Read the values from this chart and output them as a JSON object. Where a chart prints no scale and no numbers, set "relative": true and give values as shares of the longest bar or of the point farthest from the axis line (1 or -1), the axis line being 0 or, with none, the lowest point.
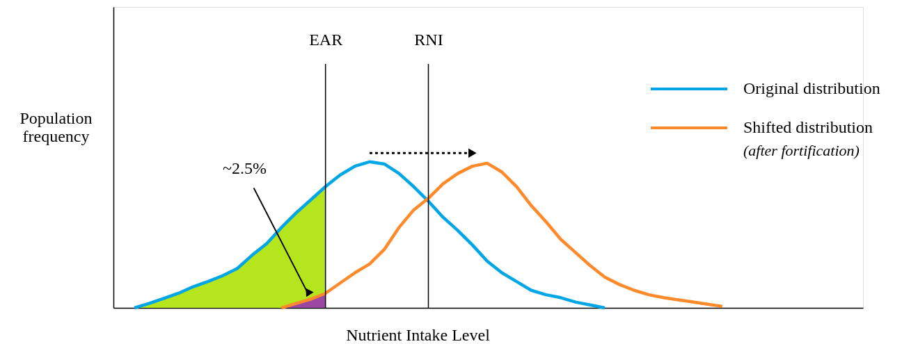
{
  "chart_data": {
    "type": "line",
    "relative": true,
    "xlabel": "Nutrient Intake Level",
    "ylabel": "Population frequency",
    "categories": [
      null,
      null,
      null,
      null,
      null,
      null,
      null,
      null,
      null,
      null,
      null,
      null,
      null,
      "EAR",
      null,
      null,
      null,
      null,
      null,
      null,
      "RNI",
      null,
      null,
      null,
      null,
      null,
      null,
      null,
      null,
      null,
      null,
      null,
      null,
      null,
      null,
      null,
      null,
      null,
      null,
      null,
      null,
      null,
      null,
      null,
      null,
      null,
      null,
      null,
      null,
      null
    ],
    "tick_labels": "x",
    "grid": false,
    "legend": "top right",
    "marker": "none",
    "line_style": "solid",
    "series": [
      {
        "name": "Original distribution",
        "color": "#00a6e6",
        "values": [
          0,
          0.03,
          0.065,
          0.1,
          0.145,
          0.18,
          0.22,
          0.27,
          0.36,
          0.44,
          0.55,
          0.65,
          0.74,
          0.83,
          0.91,
          0.97,
          1,
          0.985,
          0.92,
          0.83,
          0.73,
          0.62,
          0.53,
          0.43,
          0.32,
          0.24,
          0.18,
          0.12,
          0.09,
          0.07,
          0.04,
          0.02,
          0,
          null,
          null,
          null,
          null,
          null,
          null,
          null,
          null,
          null,
          null,
          null,
          null,
          null,
          null,
          null,
          null,
          null
        ]
      },
      {
        "name": "Shifted distribution (after fortification)",
        "color": "#ff8a2b",
        "values": [
          null,
          null,
          null,
          null,
          null,
          null,
          null,
          null,
          null,
          null,
          0,
          0.03,
          0.06,
          0.1,
          0.17,
          0.24,
          0.3,
          0.4,
          0.55,
          0.67,
          0.75,
          0.85,
          0.92,
          0.97,
          0.99,
          0.93,
          0.83,
          0.7,
          0.59,
          0.47,
          0.38,
          0.29,
          0.21,
          0.16,
          0.12,
          0.09,
          0.07,
          0.055,
          0.04,
          0.025,
          0.01,
          null,
          null,
          null,
          null,
          null,
          null,
          null,
          null,
          null
        ]
      },
      {
        "type": "area",
        "color": "#b5e61d",
        "values": [
          0,
          0.03,
          0.065,
          0.1,
          0.145,
          0.18,
          0.22,
          0.27,
          0.36,
          0.44,
          0.55,
          0.65,
          0.74,
          0.83,
          null,
          null,
          null,
          null,
          null,
          null,
          null,
          null,
          null,
          null,
          null,
          null,
          null,
          null,
          null,
          null,
          null,
          null,
          null,
          null,
          null,
          null,
          null,
          null,
          null,
          null,
          null,
          null,
          null,
          null,
          null,
          null,
          null,
          null,
          null,
          null
        ]
      },
      {
        "type": "area",
        "color": "#9b47a3",
        "values": [
          null,
          null,
          null,
          null,
          null,
          null,
          null,
          null,
          null,
          null,
          0,
          0.03,
          0.06,
          0.1,
          null,
          null,
          null,
          null,
          null,
          null,
          null,
          null,
          null,
          null,
          null,
          null,
          null,
          null,
          null,
          null,
          null,
          null,
          null,
          null,
          null,
          null,
          null,
          null,
          null,
          null,
          null,
          null,
          null,
          null,
          null,
          null,
          null,
          null,
          null,
          null
        ]
      }
    ],
    "ref_lines": [
      {
        "axis": "x",
        "value": "EAR",
        "color": "#000000"
      },
      {
        "axis": "x",
        "value": "RNI",
        "color": "#000000"
      }
    ],
    "annotations": [
      "~2.5%"
    ]
  }
}
